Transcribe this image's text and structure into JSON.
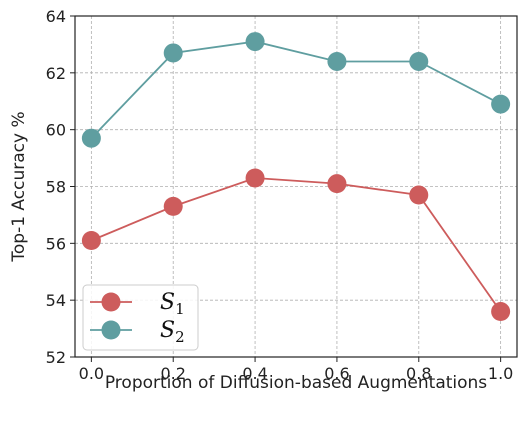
{
  "chart_data": {
    "type": "line",
    "xlabel": "Proportion of Diffusion-based Augmentations",
    "ylabel": "Top-1 Accuracy %",
    "x": [
      0.0,
      0.2,
      0.4,
      0.6,
      0.8,
      1.0
    ],
    "x_tick_labels": [
      "0.0",
      "0.2",
      "0.4",
      "0.6",
      "0.8",
      "1.0"
    ],
    "y_ticks": [
      52,
      54,
      56,
      58,
      60,
      62,
      64
    ],
    "xlim": [
      -0.04,
      1.04
    ],
    "ylim": [
      52,
      64
    ],
    "grid": true,
    "legend_position": "lower-left",
    "series": [
      {
        "name": "S",
        "name_subscript": "1",
        "color": "#cd5c5c",
        "values": [
          56.1,
          57.3,
          58.3,
          58.1,
          57.7,
          53.6
        ]
      },
      {
        "name": "S",
        "name_subscript": "2",
        "color": "#5f9ea0",
        "values": [
          59.7,
          62.7,
          63.1,
          62.4,
          62.4,
          60.9
        ]
      }
    ]
  }
}
